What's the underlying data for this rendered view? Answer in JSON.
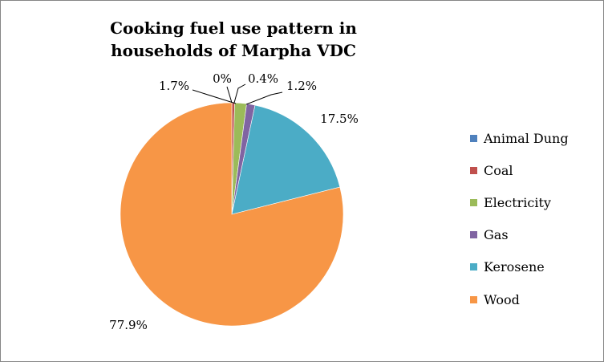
{
  "chart_data": {
    "type": "pie",
    "title": "Cooking fuel use pattern in households of Marpha VDC",
    "categories": [
      "Animal Dung",
      "Coal",
      "Electricity",
      "Gas",
      "Kerosene",
      "Wood"
    ],
    "values": [
      0.0,
      0.4,
      1.7,
      1.2,
      17.5,
      77.9
    ],
    "data_labels": [
      "0%",
      "0.4%",
      "1.7%",
      "1.2%",
      "17.5%",
      "77.9%"
    ],
    "colors": [
      "#4F81BD",
      "#C0504D",
      "#9BBB59",
      "#8064A2",
      "#4BACC6",
      "#F79646"
    ],
    "legend_position": "right"
  }
}
